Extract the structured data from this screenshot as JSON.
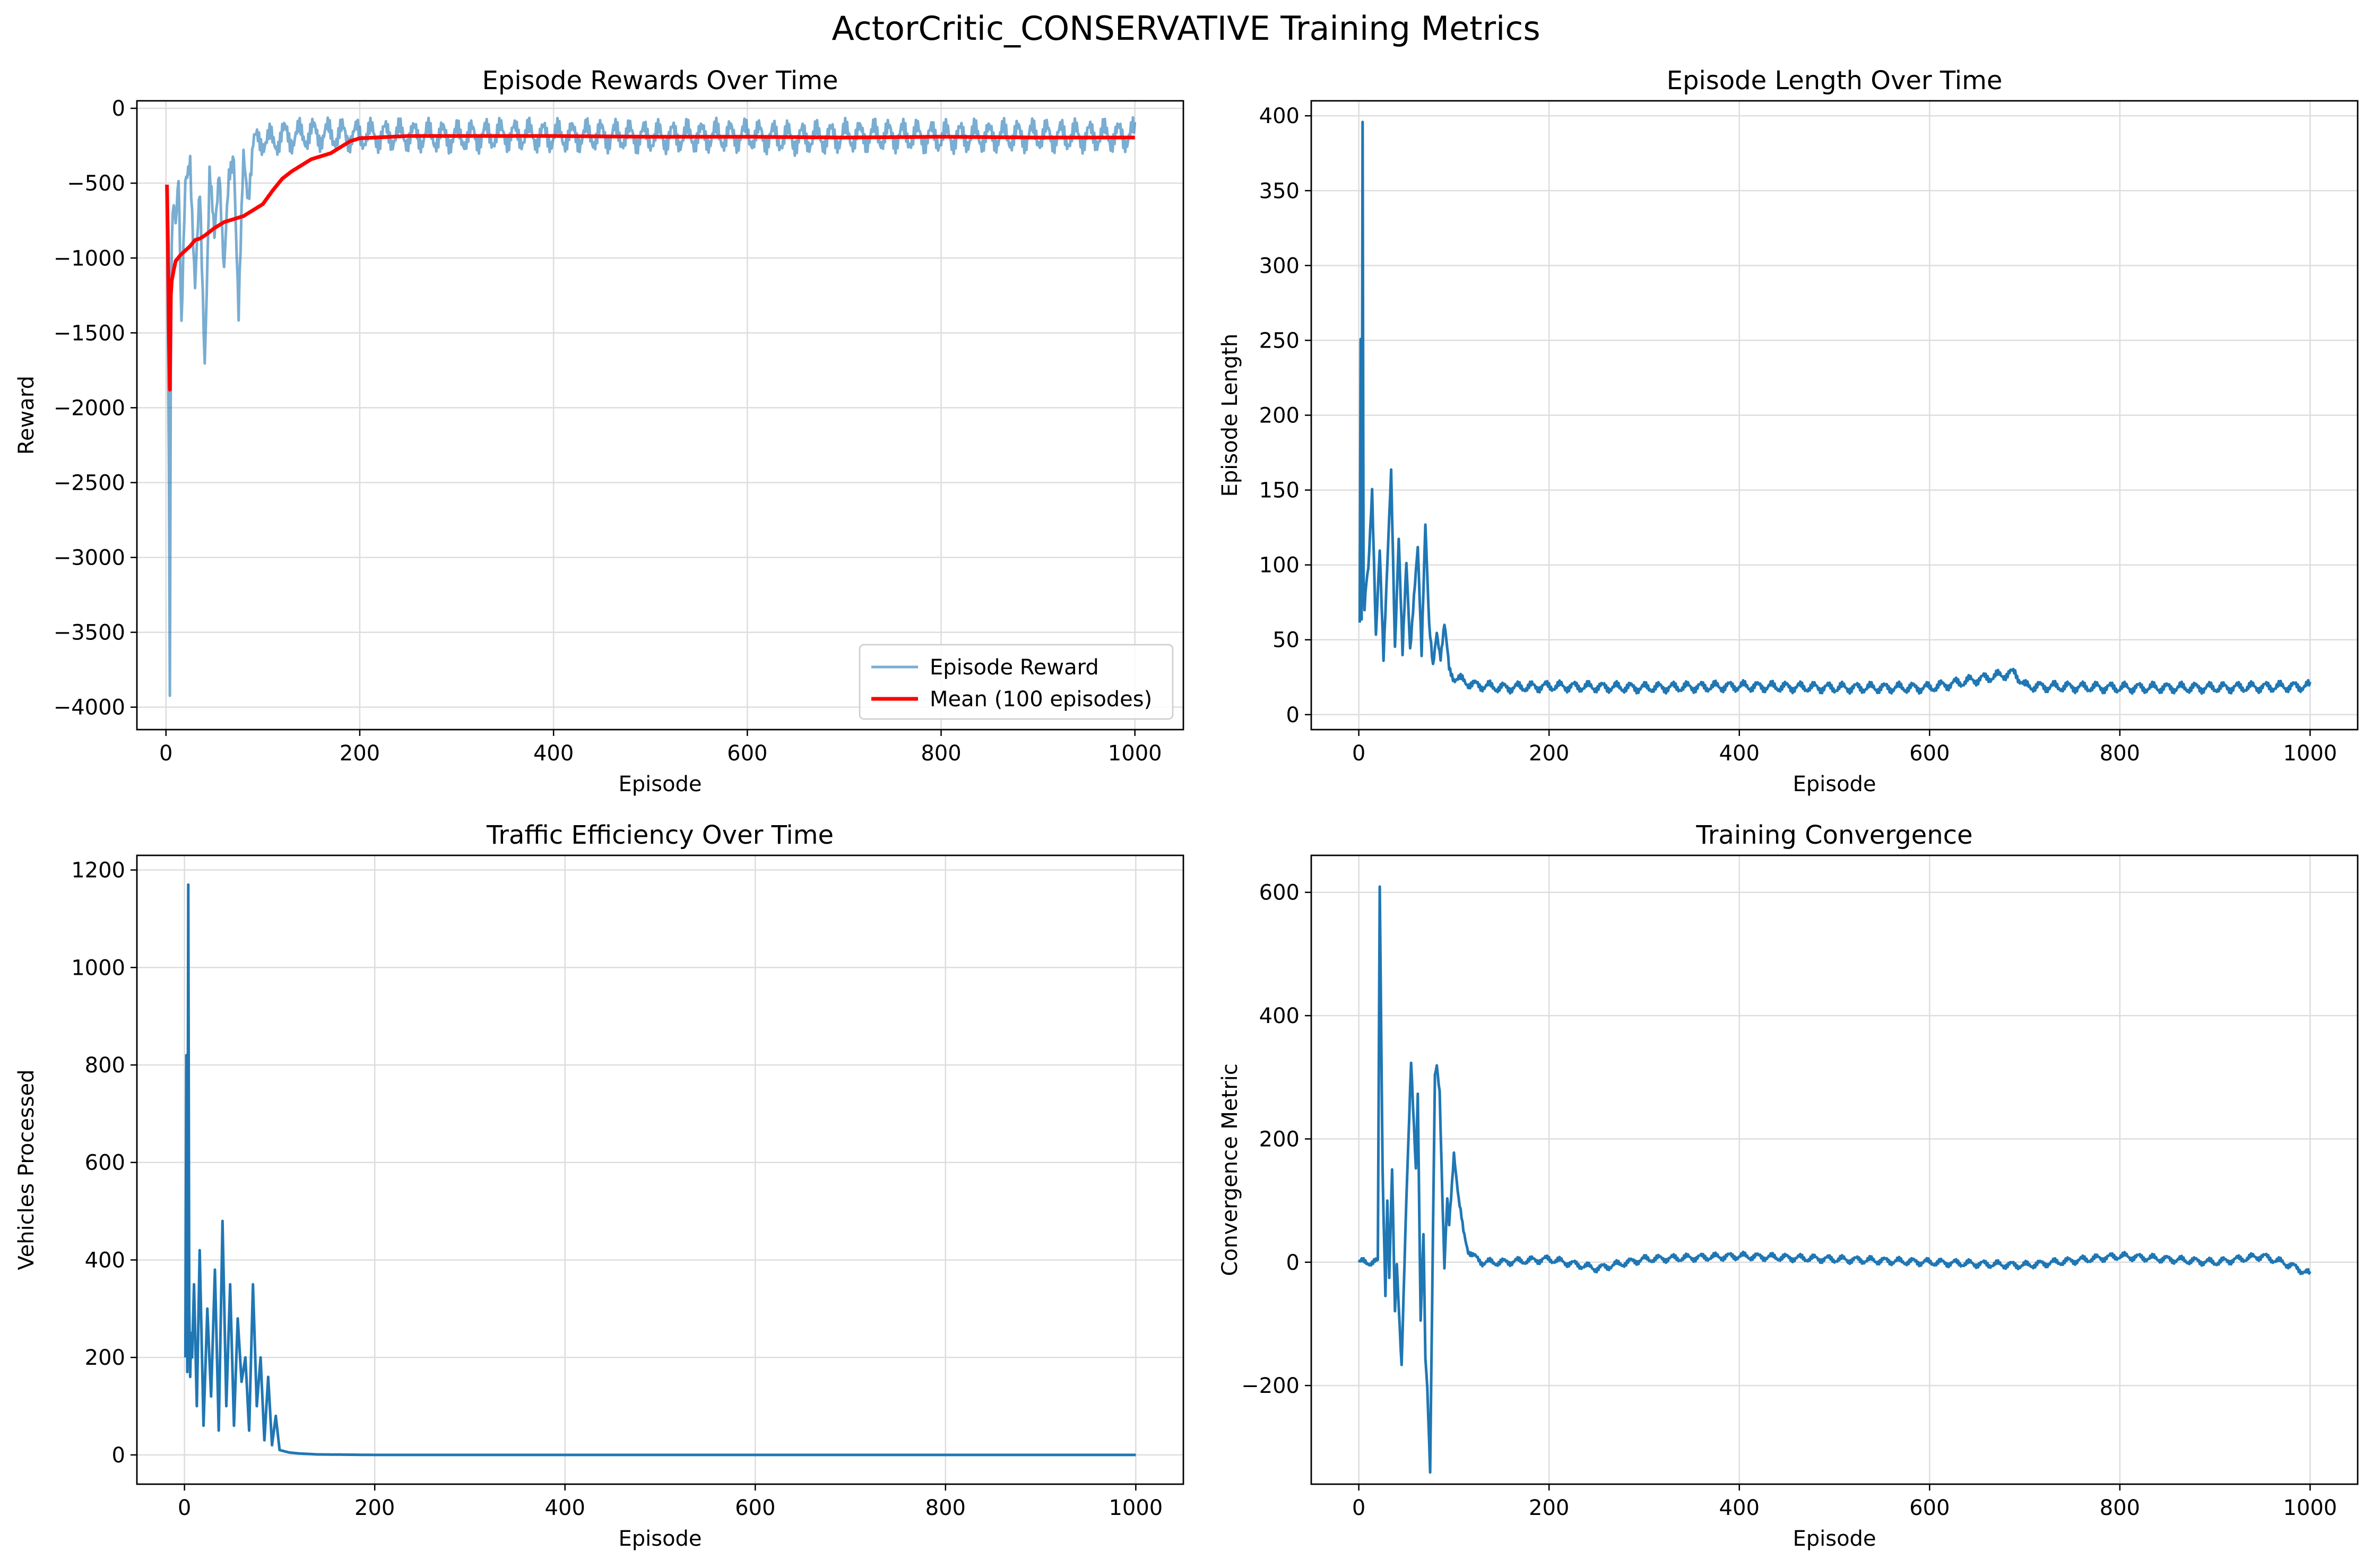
{
  "title": "ActorCritic_CONSERVATIVE Training Metrics",
  "chart_data": [
    {
      "type": "line",
      "title": "Episode Rewards Over Time",
      "xlabel": "Episode",
      "ylabel": "Reward",
      "xlim": [
        -30,
        1050
      ],
      "ylim": [
        -4150,
        50
      ],
      "xticks": [
        0,
        200,
        400,
        600,
        800,
        1000
      ],
      "yticks": [
        0,
        -500,
        -1000,
        -1500,
        -2000,
        -2500,
        -3000,
        -3500,
        -4000
      ],
      "grid": true,
      "legend": "lower right",
      "series": [
        {
          "name": "Episode Reward",
          "color": "#1f77b4",
          "opacity": 0.6,
          "x": [
            1,
            3,
            4,
            5,
            6,
            8,
            10,
            13,
            16,
            20,
            25,
            30,
            35,
            40,
            45,
            50,
            55,
            60,
            65,
            70,
            75,
            80,
            85,
            90,
            100,
            110,
            120,
            130,
            150,
            170,
            200,
            250,
            300,
            350,
            400,
            450,
            500,
            550,
            600,
            650,
            700,
            750,
            800,
            850,
            900,
            950,
            1000
          ],
          "y": [
            -600,
            -2500,
            -3950,
            -1800,
            -900,
            -600,
            -700,
            -400,
            -1500,
            -550,
            -300,
            -1200,
            -600,
            -1650,
            -450,
            -900,
            -350,
            -1100,
            -500,
            -250,
            -1400,
            -350,
            -550,
            -250,
            -200,
            -230,
            -180,
            -190,
            -170,
            -175,
            -180,
            -180,
            -190,
            -175,
            -185,
            -180,
            -190,
            -185,
            -180,
            -200,
            -185,
            -180,
            -190,
            -185,
            -180,
            -185,
            -180
          ],
          "noise": 120
        },
        {
          "name": "Mean (100 episodes)",
          "color": "#ff0000",
          "opacity": 1,
          "x": [
            1,
            2,
            3,
            4,
            5,
            6,
            8,
            10,
            15,
            20,
            25,
            30,
            35,
            40,
            50,
            60,
            70,
            80,
            90,
            100,
            110,
            120,
            130,
            150,
            170,
            180,
            190,
            200,
            250,
            300,
            400,
            500,
            600,
            700,
            800,
            900,
            1000
          ],
          "y": [
            -510,
            -900,
            -1500,
            -1880,
            -1250,
            -1150,
            -1080,
            -1020,
            -980,
            -950,
            -920,
            -880,
            -870,
            -850,
            -800,
            -760,
            -740,
            -720,
            -680,
            -640,
            -550,
            -470,
            -420,
            -340,
            -300,
            -260,
            -220,
            -200,
            -185,
            -185,
            -185,
            -190,
            -190,
            -195,
            -190,
            -195,
            -195
          ],
          "noise": 0
        }
      ]
    },
    {
      "type": "line",
      "title": "Episode Length Over Time",
      "xlabel": "Episode",
      "ylabel": "Episode Length",
      "xlim": [
        -50,
        1050
      ],
      "ylim": [
        -10,
        410
      ],
      "xticks": [
        0,
        200,
        400,
        600,
        800,
        1000
      ],
      "yticks": [
        0,
        50,
        100,
        150,
        200,
        250,
        300,
        350,
        400
      ],
      "grid": true,
      "series": [
        {
          "name": "",
          "color": "#1f77b4",
          "opacity": 1,
          "x": [
            1,
            2,
            3,
            4,
            5,
            6,
            8,
            10,
            14,
            18,
            22,
            26,
            30,
            34,
            38,
            42,
            46,
            50,
            54,
            58,
            62,
            66,
            70,
            74,
            78,
            82,
            86,
            90,
            95,
            100,
            120,
            150,
            200,
            300,
            400,
            500,
            600,
            690,
            700,
            800,
            900,
            1000
          ],
          "y": [
            60,
            250,
            60,
            395,
            85,
            70,
            90,
            100,
            150,
            50,
            110,
            40,
            100,
            160,
            45,
            120,
            40,
            100,
            45,
            80,
            110,
            40,
            130,
            60,
            30,
            55,
            40,
            60,
            30,
            25,
            20,
            18,
            19,
            18,
            19,
            18,
            18,
            28,
            19,
            18,
            18,
            19
          ],
          "noise": 4
        }
      ]
    },
    {
      "type": "line",
      "title": "Traffic Efficiency Over Time",
      "xlabel": "Episode",
      "ylabel": "Vehicles Processed",
      "xlim": [
        -50,
        1050
      ],
      "ylim": [
        -60,
        1230
      ],
      "xticks": [
        0,
        200,
        400,
        600,
        800,
        1000
      ],
      "yticks": [
        0,
        200,
        400,
        600,
        800,
        1000,
        1200
      ],
      "grid": true,
      "series": [
        {
          "name": "",
          "color": "#1f77b4",
          "opacity": 1,
          "x": [
            1,
            2,
            3,
            4,
            5,
            6,
            7,
            8,
            10,
            13,
            16,
            20,
            24,
            28,
            32,
            36,
            40,
            44,
            48,
            52,
            56,
            60,
            64,
            68,
            72,
            76,
            80,
            84,
            88,
            92,
            96,
            100,
            110,
            120,
            140,
            200,
            400,
            600,
            800,
            1000
          ],
          "y": [
            200,
            820,
            170,
            1170,
            300,
            160,
            250,
            200,
            350,
            100,
            420,
            60,
            300,
            120,
            380,
            50,
            480,
            100,
            350,
            60,
            280,
            150,
            200,
            50,
            350,
            100,
            200,
            30,
            160,
            20,
            80,
            10,
            5,
            3,
            1,
            0,
            0,
            0,
            0,
            0
          ],
          "noise": 0
        }
      ]
    },
    {
      "type": "line",
      "title": "Training Convergence",
      "xlabel": "Episode",
      "ylabel": "Convergence Metric",
      "xlim": [
        -50,
        1050
      ],
      "ylim": [
        -360,
        660
      ],
      "xticks": [
        0,
        200,
        400,
        600,
        800,
        1000
      ],
      "yticks": [
        600,
        400,
        200,
        0,
        -200
      ],
      "grid": true,
      "series": [
        {
          "name": "",
          "color": "#1f77b4",
          "opacity": 1,
          "x": [
            0,
            10,
            20,
            22,
            25,
            28,
            30,
            32,
            35,
            38,
            40,
            45,
            50,
            55,
            60,
            62,
            65,
            68,
            70,
            72,
            75,
            78,
            80,
            82,
            85,
            88,
            90,
            93,
            95,
            98,
            100,
            105,
            110,
            115,
            120,
            130,
            150,
            200,
            250,
            300,
            400,
            500,
            600,
            700,
            800,
            900,
            950,
            980,
            1000
          ],
          "y": [
            0,
            0,
            0,
            610,
            150,
            -50,
            100,
            -30,
            150,
            -80,
            0,
            -170,
            100,
            330,
            150,
            270,
            -100,
            50,
            -150,
            -200,
            -340,
            50,
            300,
            320,
            280,
            100,
            -10,
            100,
            60,
            130,
            180,
            100,
            50,
            20,
            10,
            0,
            0,
            5,
            -10,
            5,
            10,
            5,
            0,
            -5,
            10,
            0,
            10,
            -5,
            -20
          ],
          "noise": 7
        }
      ]
    }
  ]
}
